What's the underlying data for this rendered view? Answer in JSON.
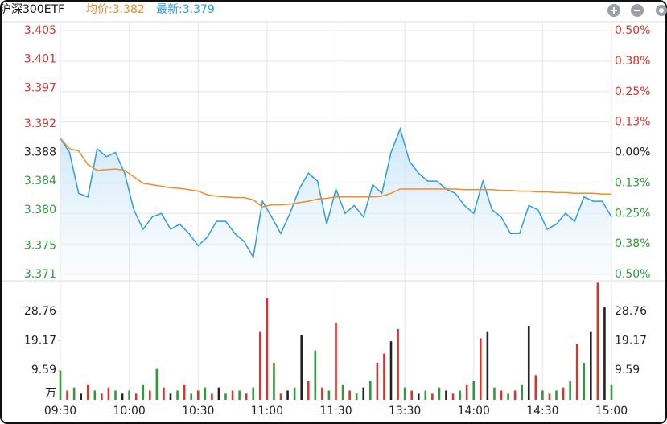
{
  "header": {
    "title": "沪深300ETF",
    "avg_label": "均价:3.382",
    "last_label": "最新:3.379"
  },
  "chart_data": [
    {
      "type": "line",
      "x": [
        0,
        4,
        8,
        12,
        16,
        20,
        24,
        28,
        32,
        36,
        40,
        44,
        48,
        52,
        56,
        60,
        64,
        68,
        72,
        76,
        80,
        84,
        88,
        92,
        96,
        100,
        104,
        108,
        112,
        116,
        120,
        124,
        128,
        132,
        136,
        140,
        144,
        148,
        152,
        156,
        160,
        164,
        168,
        172,
        176,
        180,
        184,
        188,
        192,
        196,
        200,
        204,
        208,
        212,
        216,
        220,
        224,
        228,
        232,
        236,
        240
      ],
      "series": [
        {
          "color": "#2f9be0",
          "area": true,
          "values": [
            3.39,
            3.388,
            3.3823,
            3.3818,
            3.3885,
            3.3874,
            3.388,
            3.3851,
            3.38,
            3.3773,
            3.379,
            3.3795,
            3.3773,
            3.378,
            3.3767,
            3.375,
            3.3762,
            3.3784,
            3.3784,
            3.3767,
            3.3756,
            3.3734,
            3.3812,
            3.379,
            3.3767,
            3.3795,
            3.3829,
            3.3851,
            3.384,
            3.378,
            3.3829,
            3.3795,
            3.3806,
            3.379,
            3.3835,
            3.3823,
            3.388,
            3.3913,
            3.3868,
            3.3851,
            3.384,
            3.384,
            3.3829,
            3.3823,
            3.3806,
            3.3795,
            3.384,
            3.38,
            3.379,
            3.3767,
            3.3767,
            3.3806,
            3.38,
            3.3773,
            3.378,
            3.3795,
            3.3784,
            3.3818,
            3.3812,
            3.3812,
            3.379
          ]
        },
        {
          "color": "#f08c2a",
          "values": [
            3.39,
            3.3885,
            3.3882,
            3.3863,
            3.3855,
            3.3856,
            3.3857,
            3.3855,
            3.3846,
            3.3837,
            3.3835,
            3.3833,
            3.3831,
            3.383,
            3.3828,
            3.3826,
            3.3821,
            3.3819,
            3.3818,
            3.3817,
            3.3817,
            3.3814,
            3.3804,
            3.3807,
            3.3807,
            3.3808,
            3.381,
            3.3812,
            3.3815,
            3.3816,
            3.3818,
            3.3818,
            3.3818,
            3.3818,
            3.3818,
            3.3819,
            3.3823,
            3.3829,
            3.3829,
            3.3829,
            3.3829,
            3.3829,
            3.3829,
            3.3829,
            3.3828,
            3.3828,
            3.3828,
            3.3828,
            3.3827,
            3.3827,
            3.3826,
            3.3826,
            3.3825,
            3.3825,
            3.3824,
            3.3824,
            3.3823,
            3.3823,
            3.3823,
            3.3822,
            3.3822
          ]
        }
      ],
      "ylim": [
        3.371,
        3.405
      ],
      "yticks": [
        3.405,
        3.401,
        3.397,
        3.392,
        3.388,
        3.384,
        {
          "value": 3.38,
          "label": "3.380"
        },
        3.375,
        3.371
      ],
      "ytick_colors": [
        "#d9332f",
        "#d9332f",
        "#d9332f",
        "#d9332f",
        "#222222",
        "#2e9a3a",
        "#2e9a3a",
        "#2e9a3a",
        "#2e9a3a"
      ],
      "y2lim": [
        -0.5,
        0.5
      ],
      "y2ticks": [
        {
          "value": 0.5,
          "label": "0.50%"
        },
        {
          "value": 0.375,
          "label": "0.38%"
        },
        {
          "value": 0.25,
          "label": "0.25%"
        },
        {
          "value": 0.125,
          "label": "0.13%"
        },
        {
          "value": 0,
          "label": "0.00%"
        },
        {
          "value": -0.125,
          "label": "0.13%"
        },
        {
          "value": -0.25,
          "label": "0.25%"
        },
        {
          "value": -0.375,
          "label": "0.38%"
        },
        {
          "value": -0.5,
          "label": "0.50%"
        }
      ],
      "y2tick_colors": [
        "#d9332f",
        "#d9332f",
        "#d9332f",
        "#d9332f",
        "#222222",
        "#2e9a3a",
        "#2e9a3a",
        "#2e9a3a",
        "#2e9a3a"
      ],
      "grid": true
    },
    {
      "type": "bar",
      "x": [
        0,
        3,
        6,
        9,
        12,
        15,
        18,
        21,
        24,
        27,
        30,
        33,
        36,
        39,
        42,
        45,
        48,
        51,
        54,
        57,
        60,
        63,
        66,
        69,
        72,
        75,
        78,
        81,
        84,
        87,
        90,
        93,
        96,
        99,
        102,
        105,
        108,
        111,
        114,
        117,
        120,
        123,
        126,
        129,
        132,
        135,
        138,
        141,
        144,
        147,
        150,
        153,
        156,
        159,
        162,
        165,
        168,
        171,
        174,
        177,
        180,
        183,
        186,
        189,
        192,
        195,
        198,
        201,
        204,
        207,
        210,
        213,
        216,
        219,
        222,
        225,
        228,
        231,
        234,
        237,
        240
      ],
      "values": [
        9.5,
        3,
        4,
        2,
        5,
        3,
        2,
        4,
        3,
        2,
        3,
        2,
        5,
        3,
        10,
        4,
        2,
        3,
        5,
        2,
        3,
        4,
        2,
        4,
        2,
        3,
        3,
        2,
        4,
        22,
        33,
        12,
        2,
        3,
        4,
        21,
        6,
        16,
        4,
        3,
        25,
        5,
        3,
        2,
        4,
        6,
        12,
        15,
        19,
        23,
        4,
        3,
        2,
        3,
        2,
        4,
        3,
        2,
        3,
        5,
        6,
        20,
        22,
        4,
        3,
        2,
        3,
        5,
        24,
        8,
        3,
        2,
        3,
        4,
        6,
        18,
        12,
        22,
        38,
        30,
        5
      ],
      "colors": [
        "#2e9a3a",
        "#d9332f",
        "#2e9a3a",
        "#222222",
        "#d9332f",
        "#2e9a3a",
        "#d9332f",
        "#d9332f",
        "#2e9a3a",
        "#222222",
        "#2e9a3a",
        "#d9332f",
        "#2e9a3a",
        "#d9332f",
        "#2e9a3a",
        "#d9332f",
        "#222222",
        "#2e9a3a",
        "#d9332f",
        "#2e9a3a",
        "#d9332f",
        "#2e9a3a",
        "#d9332f",
        "#222222",
        "#2e9a3a",
        "#d9332f",
        "#2e9a3a",
        "#d9332f",
        "#2e9a3a",
        "#d9332f",
        "#d9332f",
        "#2e9a3a",
        "#d9332f",
        "#222222",
        "#2e9a3a",
        "#222222",
        "#d9332f",
        "#2e9a3a",
        "#d9332f",
        "#2e9a3a",
        "#d9332f",
        "#2e9a3a",
        "#d9332f",
        "#2e9a3a",
        "#222222",
        "#2e9a3a",
        "#d9332f",
        "#d9332f",
        "#222222",
        "#d9332f",
        "#2e9a3a",
        "#d9332f",
        "#222222",
        "#2e9a3a",
        "#d9332f",
        "#2e9a3a",
        "#222222",
        "#d9332f",
        "#2e9a3a",
        "#d9332f",
        "#2e9a3a",
        "#d9332f",
        "#222222",
        "#2e9a3a",
        "#d9332f",
        "#2e9a3a",
        "#d9332f",
        "#2e9a3a",
        "#222222",
        "#d9332f",
        "#2e9a3a",
        "#d9332f",
        "#2e9a3a",
        "#d9332f",
        "#2e9a3a",
        "#d9332f",
        "#2e9a3a",
        "#222222",
        "#d9332f",
        "#222222",
        "#2e9a3a"
      ],
      "xlim": [
        0,
        240
      ],
      "xticks": [
        {
          "value": 0,
          "label": "09:30"
        },
        {
          "value": 30,
          "label": "10:00"
        },
        {
          "value": 60,
          "label": "10:30"
        },
        {
          "value": 90,
          "label": "11:00"
        },
        {
          "value": 120,
          "label": "11:30"
        },
        {
          "value": 150,
          "label": "13:30"
        },
        {
          "value": 180,
          "label": "14:00"
        },
        {
          "value": 210,
          "label": "14:30"
        },
        {
          "value": 240,
          "label": "15:00"
        }
      ],
      "ylim": [
        0,
        38.35
      ],
      "yticks": [
        9.59,
        19.17,
        28.76
      ],
      "unit": "万"
    }
  ]
}
